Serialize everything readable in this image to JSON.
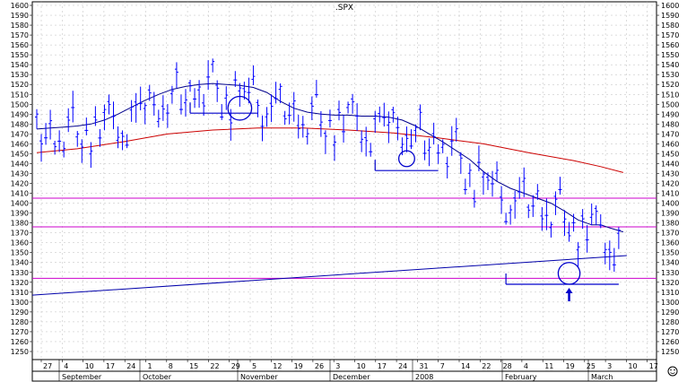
{
  "chart_data": {
    "type": "ohlc",
    "title": ".SPX",
    "y_axis": {
      "min": 1250,
      "max": 1600,
      "step": 10,
      "labels": [
        "1600",
        "1590",
        "1580",
        "1570",
        "1560",
        "1550",
        "1540",
        "1530",
        "1520",
        "1510",
        "1500",
        "1490",
        "1480",
        "1470",
        "1460",
        "1450",
        "1440",
        "1430",
        "1420",
        "1410",
        "1400",
        "1390",
        "1380",
        "1370",
        "1360",
        "1350",
        "1340",
        "1330",
        "1320",
        "1310",
        "1300",
        "1290",
        "1280",
        "1270",
        "1260",
        "1250"
      ]
    },
    "x_axis": {
      "day_labels": [
        "27",
        "4",
        "10",
        "17",
        "24",
        "1",
        "8",
        "15",
        "22",
        "29",
        "5",
        "12",
        "19",
        "26",
        "3",
        "10",
        "17",
        "24",
        "31",
        "7",
        "14",
        "22",
        "28",
        "4",
        "11",
        "19",
        "25",
        "3",
        "10",
        "17"
      ],
      "month_labels": [
        "September",
        "October",
        "November",
        "December",
        "2008",
        "February",
        "March"
      ]
    },
    "moving_average_short": [
      [
        1,
        1475
      ],
      [
        4,
        1476
      ],
      [
        7,
        1477
      ],
      [
        10,
        1478
      ],
      [
        13,
        1480
      ],
      [
        16,
        1484
      ],
      [
        19,
        1490
      ],
      [
        22,
        1497
      ],
      [
        25,
        1504
      ],
      [
        28,
        1510
      ],
      [
        31,
        1515
      ],
      [
        34,
        1518
      ],
      [
        37,
        1520
      ],
      [
        40,
        1521
      ],
      [
        43,
        1520
      ],
      [
        46,
        1519
      ],
      [
        49,
        1517
      ],
      [
        52,
        1512
      ],
      [
        55,
        1503
      ],
      [
        58,
        1496
      ],
      [
        61,
        1492
      ],
      [
        64,
        1490
      ],
      [
        67,
        1489
      ],
      [
        70,
        1489
      ],
      [
        73,
        1488
      ],
      [
        76,
        1488
      ],
      [
        79,
        1487
      ],
      [
        82,
        1484
      ],
      [
        85,
        1478
      ],
      [
        88,
        1470
      ],
      [
        91,
        1462
      ],
      [
        94,
        1453
      ],
      [
        97,
        1444
      ],
      [
        100,
        1432
      ],
      [
        103,
        1422
      ],
      [
        106,
        1415
      ],
      [
        109,
        1410
      ],
      [
        112,
        1405
      ],
      [
        115,
        1400
      ],
      [
        118,
        1392
      ],
      [
        121,
        1383
      ],
      [
        124,
        1378
      ],
      [
        126,
        1378
      ],
      [
        128,
        1375
      ],
      [
        131,
        1371
      ]
    ],
    "moving_average_long": [
      [
        1,
        1451
      ],
      [
        10,
        1455
      ],
      [
        20,
        1462
      ],
      [
        30,
        1470
      ],
      [
        40,
        1474
      ],
      [
        50,
        1476
      ],
      [
        60,
        1476
      ],
      [
        70,
        1474
      ],
      [
        80,
        1471
      ],
      [
        90,
        1466
      ],
      [
        100,
        1460
      ],
      [
        110,
        1451
      ],
      [
        120,
        1443
      ],
      [
        126,
        1437
      ],
      [
        131,
        1431
      ]
    ],
    "support_line": {
      "from": [
        1,
        1307
      ],
      "to": [
        131,
        1347
      ]
    },
    "horizontal_levels": [
      1405,
      1376,
      1324
    ],
    "annotations": {
      "breakout_segments": [
        {
          "from": [
            35,
            1491
          ],
          "to": [
            50,
            1491
          ]
        },
        {
          "from": [
            76,
            1433
          ],
          "to": [
            90,
            1433
          ]
        },
        {
          "from": [
            105,
            1318
          ],
          "to": [
            130,
            1318
          ]
        }
      ],
      "circles": [
        {
          "center": [
            46,
            1496
          ],
          "radius_data": 12
        },
        {
          "center": [
            83,
            1445
          ],
          "radius_data": 8
        },
        {
          "center": [
            119,
            1329
          ],
          "radius_data": 11
        }
      ],
      "arrow": {
        "at": [
          119,
          1308
        ]
      }
    }
  },
  "icons": {
    "corner": "smiley-icon"
  },
  "colors": {
    "background": "#ffffff",
    "bars": "#0000ff",
    "ma_short": "#00008b",
    "ma_long": "#cc0000",
    "levels": "#cc00cc",
    "support": "#0000aa",
    "annotations": "#0000cc",
    "grid": "#bbbbbb"
  }
}
